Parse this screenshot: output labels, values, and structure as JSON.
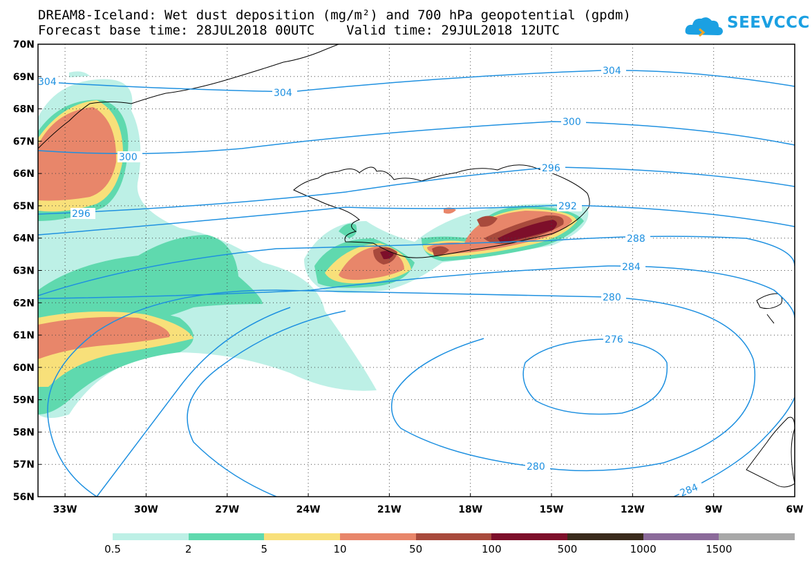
{
  "title_line1": "DREAM8-Iceland: Wet dust deposition (mg/m²) and 700 hPa geopotential (gpdm)",
  "title_line2": "Forecast base time: 28JUL2018 00UTC    Valid time: 29JUL2018 12UTC",
  "logo_text": "SEEVCCC",
  "lat_labels": [
    "70N",
    "69N",
    "68N",
    "67N",
    "66N",
    "65N",
    "64N",
    "63N",
    "62N",
    "61N",
    "60N",
    "59N",
    "58N",
    "57N",
    "56N"
  ],
  "lon_labels": [
    "33W",
    "30W",
    "27W",
    "24W",
    "21W",
    "18W",
    "15W",
    "12W",
    "9W",
    "6W"
  ],
  "contour_labels": [
    "304",
    "304",
    "304",
    "300",
    "300",
    "296",
    "296",
    "292",
    "288",
    "284",
    "280",
    "276",
    "280",
    "284"
  ],
  "legend": {
    "labels": [
      "0.5",
      "2",
      "5",
      "10",
      "50",
      "100",
      "500",
      "1000",
      "1500"
    ],
    "colors": [
      "#bdf0e6",
      "#5fd9ae",
      "#f8e07a",
      "#e8866a",
      "#a84a3c",
      "#7d0f2a",
      "#3a2a1c",
      "#8b6a9a",
      "#a8a8a8"
    ]
  },
  "colors": {
    "contour": "#1e90e0",
    "coast": "#000000"
  }
}
